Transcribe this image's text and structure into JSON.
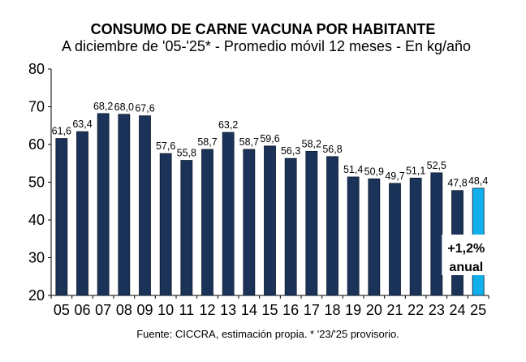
{
  "chart_data": {
    "type": "bar",
    "title": "CONSUMO DE CARNE VACUNA POR HABITANTE",
    "subtitle": "A diciembre de '05-'25* - Promedio móvil 12 meses -  En kg/año",
    "xlabel": "",
    "ylabel": "",
    "ylim": [
      20,
      80
    ],
    "yticks": [
      20,
      30,
      40,
      50,
      60,
      70,
      80
    ],
    "categories": [
      "05",
      "06",
      "07",
      "08",
      "09",
      "10",
      "11",
      "12",
      "13",
      "14",
      "15",
      "16",
      "17",
      "18",
      "19",
      "20",
      "21",
      "22",
      "23",
      "24",
      "25"
    ],
    "values": [
      61.6,
      63.4,
      68.2,
      68.0,
      67.6,
      57.6,
      55.8,
      58.7,
      63.2,
      58.7,
      59.6,
      56.3,
      58.2,
      56.8,
      51.4,
      50.9,
      49.7,
      51.1,
      52.5,
      47.8,
      48.4
    ],
    "data_labels": [
      "61,6",
      "63,4",
      "68,2",
      "68,0",
      "67,6",
      "57,6",
      "55,8",
      "58,7",
      "63,2",
      "58,7",
      "59,6",
      "56,3",
      "58,2",
      "56,8",
      "51,4",
      "50,9",
      "49,7",
      "51,1",
      "52,5",
      "47,8",
      "48,4"
    ],
    "highlight_index": 20,
    "colors": {
      "bar": "#1b3358",
      "highlight": "#0fb0ec",
      "bar_edge": "#0d1a2e"
    },
    "annotation": {
      "line1": "+1,2%",
      "line2": "anual"
    },
    "grid": false,
    "legend": "none",
    "source": "Fuente: CICCRA, estimación propia. * '23/'25 provisorio."
  }
}
